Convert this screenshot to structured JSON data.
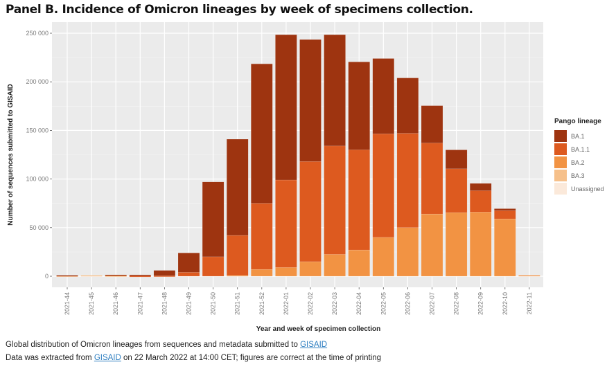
{
  "title": "Panel B. Incidence of Omicron lineages by week of specimens collection.",
  "footer": {
    "line1_text": "Global distribution of Omicron lineages from sequences and metadata submitted to ",
    "line1_link": "GISAID",
    "line2_prefix": "Data was extracted from ",
    "line2_link": "GISAID",
    "line2_suffix": " on 22 March 2022 at 14:00 CET; figures are correct at the time of printing"
  },
  "chart_data": {
    "type": "bar",
    "stacked": true,
    "title": "Panel B. Incidence of Omicron lineages by week of specimens collection.",
    "xlabel": "Year and week of specimen collection",
    "ylabel": "Number of sequences submitted to GISAID",
    "ylim": [
      0,
      265000
    ],
    "yticks": [
      0,
      50000,
      100000,
      150000,
      200000,
      250000
    ],
    "ytick_labels": [
      "0",
      "50 000",
      "100 000",
      "150 000",
      "200 000",
      "250 000"
    ],
    "grid": true,
    "legend_title": "Pango lineage",
    "legend_position": "right",
    "categories": [
      "2021-44",
      "2021-45",
      "2021-46",
      "2021-47",
      "2021-48",
      "2021-49",
      "2021-50",
      "2021-51",
      "2021-52",
      "2022-01",
      "2022-02",
      "2022-03",
      "2022-04",
      "2022-05",
      "2022-06",
      "2022-07",
      "2022-08",
      "2022-09",
      "2022-10",
      "2022-11"
    ],
    "series": [
      {
        "name": "Unassigned",
        "color": "#fbe9da",
        "values": [
          300,
          600,
          300,
          0,
          0,
          0,
          0,
          0,
          0,
          0,
          0,
          0,
          0,
          0,
          0,
          0,
          0,
          0,
          0,
          0
        ]
      },
      {
        "name": "BA.3",
        "color": "#f6c08a",
        "values": [
          0,
          400,
          200,
          0,
          0,
          0,
          0,
          0,
          0,
          0,
          0,
          0,
          0,
          0,
          0,
          0,
          0,
          0,
          0,
          0
        ]
      },
      {
        "name": "BA.2",
        "color": "#f29343",
        "values": [
          300,
          0,
          500,
          0,
          0,
          0,
          0,
          1000,
          7000,
          9000,
          15000,
          22500,
          27000,
          40000,
          50000,
          64000,
          65500,
          66000,
          59000,
          1000
        ]
      },
      {
        "name": "BA.1.1",
        "color": "#dd5a1f",
        "values": [
          0,
          0,
          0,
          300,
          500,
          4000,
          20000,
          41000,
          68000,
          90000,
          103000,
          111500,
          103000,
          106500,
          97000,
          73000,
          45000,
          22000,
          8500,
          0
        ]
      },
      {
        "name": "BA.1",
        "color": "#9e3410",
        "values": [
          400,
          0,
          500,
          1200,
          5500,
          20000,
          77000,
          99000,
          143500,
          149500,
          125500,
          114500,
          90500,
          77500,
          57000,
          38500,
          19500,
          7500,
          2000,
          0
        ]
      }
    ]
  },
  "legend_order": [
    "BA.1",
    "BA.1.1",
    "BA.2",
    "BA.3",
    "Unassigned"
  ]
}
